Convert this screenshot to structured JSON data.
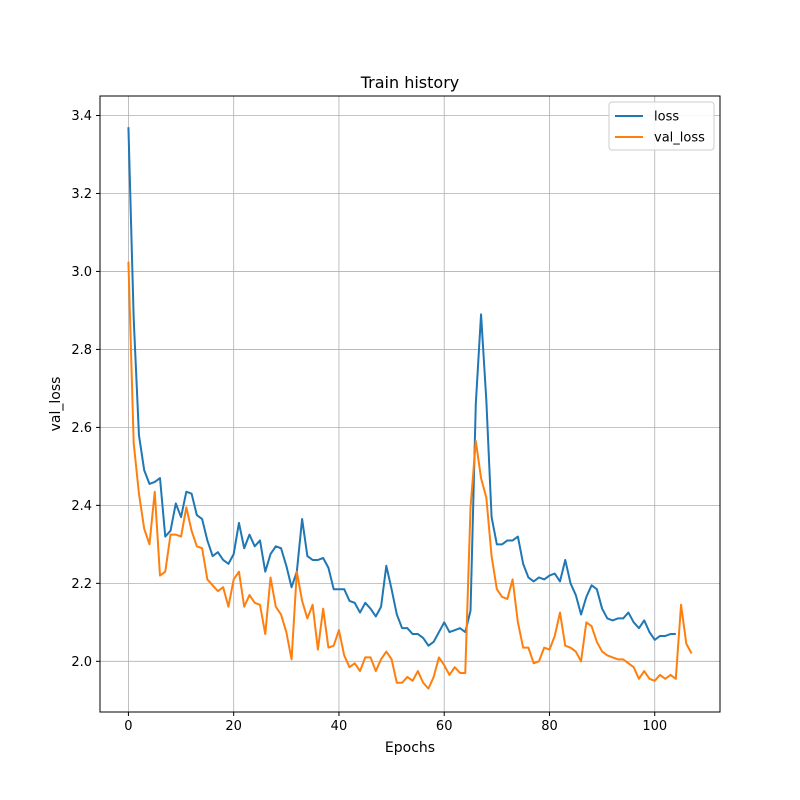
{
  "chart_data": {
    "type": "line",
    "title": "Train history",
    "xlabel": "Epochs",
    "ylabel": "val_loss",
    "xlim": [
      -5.4,
      112.4
    ],
    "ylim": [
      1.87,
      3.45
    ],
    "xticks": [
      0,
      20,
      40,
      60,
      80,
      100
    ],
    "yticks": [
      2.0,
      2.2,
      2.4,
      2.6,
      2.8,
      3.0,
      3.2,
      3.4
    ],
    "ytick_labels": [
      "2.0",
      "2.2",
      "2.4",
      "2.6",
      "2.8",
      "3.0",
      "3.2",
      "3.4"
    ],
    "grid": true,
    "legend": "top-right",
    "series": [
      {
        "name": "loss",
        "color": "#1f77b4",
        "x_start": 0,
        "values": [
          3.37,
          2.88,
          2.58,
          2.49,
          2.455,
          2.46,
          2.47,
          2.32,
          2.335,
          2.405,
          2.37,
          2.435,
          2.43,
          2.375,
          2.365,
          2.31,
          2.27,
          2.28,
          2.26,
          2.25,
          2.275,
          2.355,
          2.29,
          2.325,
          2.295,
          2.31,
          2.23,
          2.275,
          2.295,
          2.29,
          2.245,
          2.19,
          2.23,
          2.365,
          2.27,
          2.26,
          2.26,
          2.265,
          2.24,
          2.185,
          2.185,
          2.185,
          2.155,
          2.15,
          2.125,
          2.15,
          2.135,
          2.115,
          2.14,
          2.245,
          2.185,
          2.12,
          2.085,
          2.085,
          2.07,
          2.07,
          2.06,
          2.04,
          2.05,
          2.075,
          2.1,
          2.075,
          2.08,
          2.085,
          2.075,
          2.13,
          2.66,
          2.89,
          2.67,
          2.37,
          2.3,
          2.3,
          2.31,
          2.31,
          2.32,
          2.25,
          2.215,
          2.205,
          2.215,
          2.21,
          2.22,
          2.225,
          2.205,
          2.26,
          2.2,
          2.17,
          2.12,
          2.165,
          2.195,
          2.185,
          2.135,
          2.11,
          2.105,
          2.11,
          2.11,
          2.125,
          2.1,
          2.085,
          2.105,
          2.075,
          2.055,
          2.065,
          2.065,
          2.07,
          2.07
        ]
      },
      {
        "name": "val_loss",
        "color": "#ff7f0e",
        "x_start": 0,
        "values": [
          3.025,
          2.56,
          2.43,
          2.34,
          2.3,
          2.435,
          2.22,
          2.23,
          2.325,
          2.325,
          2.32,
          2.395,
          2.335,
          2.295,
          2.29,
          2.21,
          2.195,
          2.18,
          2.19,
          2.14,
          2.21,
          2.23,
          2.14,
          2.17,
          2.15,
          2.145,
          2.07,
          2.215,
          2.14,
          2.12,
          2.075,
          2.005,
          2.23,
          2.155,
          2.11,
          2.145,
          2.03,
          2.135,
          2.035,
          2.04,
          2.08,
          2.015,
          1.985,
          1.995,
          1.975,
          2.01,
          2.01,
          1.975,
          2.005,
          2.025,
          2.005,
          1.945,
          1.945,
          1.96,
          1.95,
          1.975,
          1.945,
          1.93,
          1.96,
          2.01,
          1.99,
          1.965,
          1.985,
          1.97,
          1.97,
          2.395,
          2.565,
          2.47,
          2.42,
          2.27,
          2.185,
          2.165,
          2.16,
          2.21,
          2.1,
          2.035,
          2.035,
          1.995,
          2.0,
          2.035,
          2.03,
          2.065,
          2.125,
          2.04,
          2.035,
          2.025,
          2.0,
          2.1,
          2.09,
          2.05,
          2.025,
          2.015,
          2.01,
          2.005,
          2.005,
          1.995,
          1.985,
          1.955,
          1.975,
          1.955,
          1.95,
          1.965,
          1.955,
          1.965,
          1.955,
          2.145,
          2.045,
          2.02
        ]
      }
    ]
  }
}
